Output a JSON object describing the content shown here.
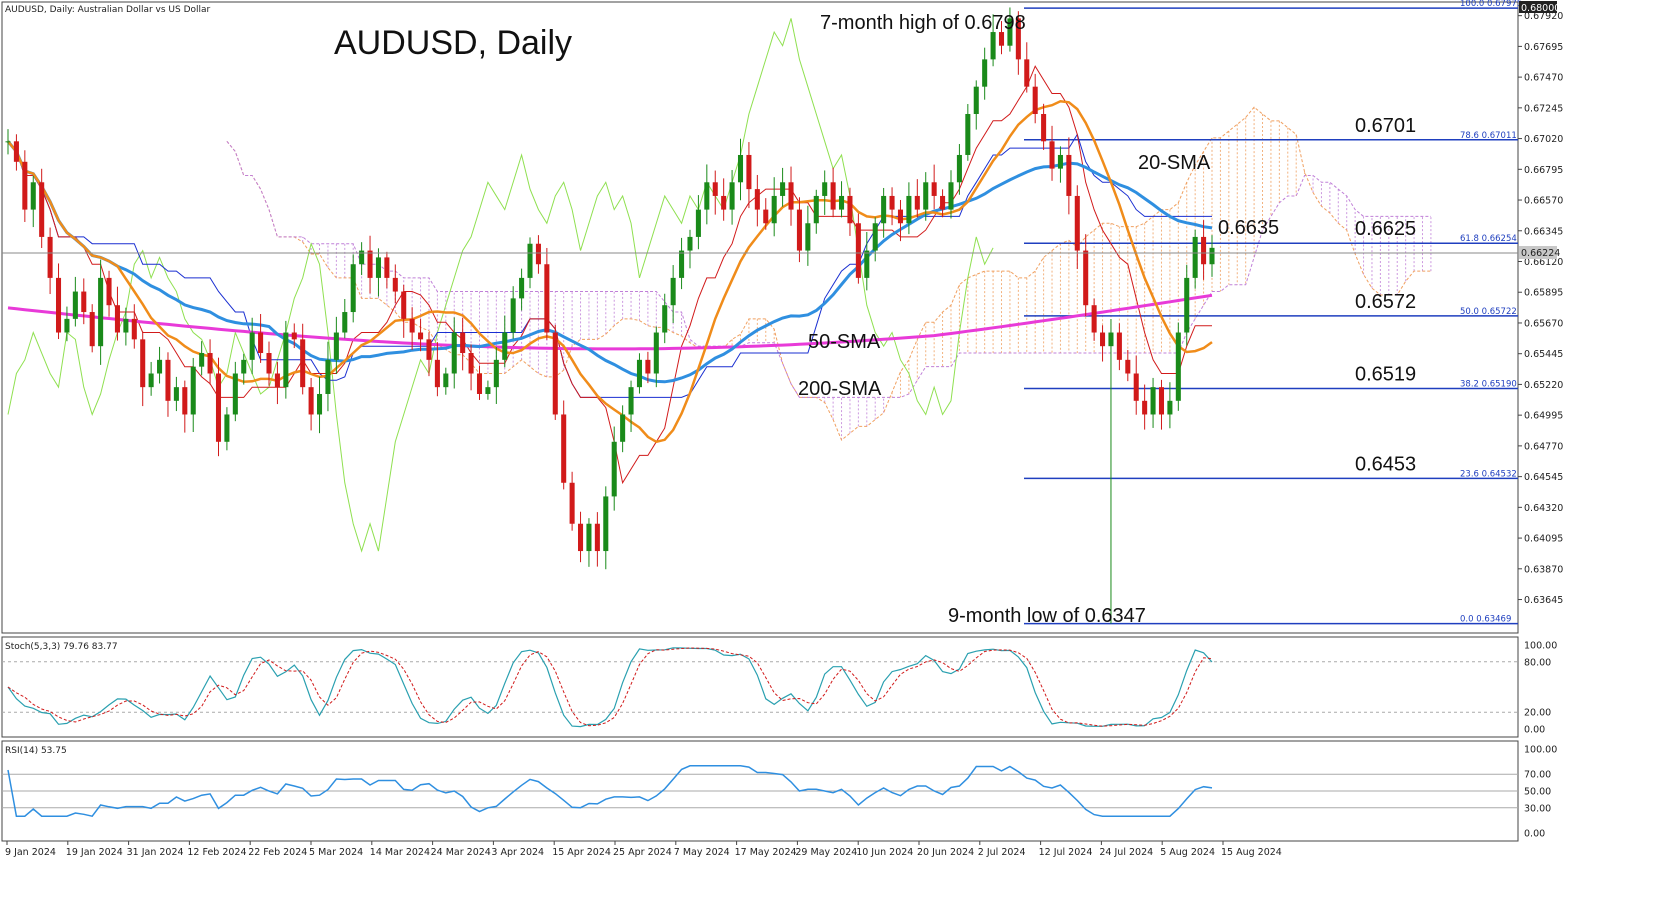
{
  "header": {
    "symbol_line": "AUDUSD, Daily:  Australian Dollar vs US Dollar",
    "chart_title": "AUDUSD, Daily",
    "current_price": "0.66224"
  },
  "annotations": {
    "high": "7-month high of 0.6798",
    "low": "9-month low of 0.6347",
    "sma20": "20-SMA",
    "sma50": "50-SMA",
    "sma200": "200-SMA",
    "price_0635": "0.6635"
  },
  "fib_levels": [
    {
      "pct": "100.0",
      "value": 0.67975,
      "label": "100.0  0.67975",
      "big": ""
    },
    {
      "pct": "78.6",
      "value": 0.67011,
      "label": "78.6  0.67011",
      "big": "0.6701"
    },
    {
      "pct": "61.8",
      "value": 0.66254,
      "label": "61.8  0.66254",
      "big": "0.6625"
    },
    {
      "pct": "50.0",
      "value": 0.65722,
      "label": "50.0  0.65722",
      "big": "0.6572"
    },
    {
      "pct": "38.2",
      "value": 0.6519,
      "label": "38.2  0.65190",
      "big": "0.6519"
    },
    {
      "pct": "23.6",
      "value": 0.64532,
      "label": "23.6  0.64532",
      "big": "0.6453"
    },
    {
      "pct": "0.0",
      "value": 0.63469,
      "label": "0.0  0.63469",
      "big": ""
    }
  ],
  "price_axis": {
    "ticks": [
      "0.67920",
      "0.67695",
      "0.67470",
      "0.67245",
      "0.67020",
      "0.66795",
      "0.66570",
      "0.66345",
      "0.66120",
      "0.65895",
      "0.65670",
      "0.65445",
      "0.65220",
      "0.64995",
      "0.64770",
      "0.64545",
      "0.64320",
      "0.64095",
      "0.63870",
      "0.63645"
    ],
    "top_label": "0.68000",
    "range": [
      0.634,
      0.6802
    ]
  },
  "date_axis": [
    "9 Jan 2024",
    "19 Jan 2024",
    "31 Jan 2024",
    "12 Feb 2024",
    "22 Feb 2024",
    "5 Mar 2024",
    "14 Mar 2024",
    "24 Mar 2024",
    "3 Apr 2024",
    "15 Apr 2024",
    "25 Apr 2024",
    "7 May 2024",
    "17 May 2024",
    "29 May 2024",
    "10 Jun 2024",
    "20 Jun 2024",
    "2 Jul 2024",
    "12 Jul 2024",
    "24 Jul 2024",
    "5 Aug 2024",
    "15 Aug 2024"
  ],
  "stoch": {
    "label": "Stoch(5,3,3) 79.76 83.77",
    "ticks": [
      "100.00",
      "80.00",
      "20.00",
      "0.00"
    ]
  },
  "rsi": {
    "label": "RSI(14) 53.75",
    "ticks": [
      "100.00",
      "70.00",
      "50.00",
      "30.00",
      "0.00"
    ]
  },
  "chart_data": {
    "type": "candlestick",
    "title": "AUDUSD, Daily",
    "ylim": [
      0.634,
      0.6802
    ],
    "closes": [
      0.67,
      0.6685,
      0.665,
      0.667,
      0.663,
      0.66,
      0.656,
      0.657,
      0.659,
      0.6575,
      0.655,
      0.66,
      0.658,
      0.656,
      0.657,
      0.6555,
      0.652,
      0.653,
      0.654,
      0.651,
      0.652,
      0.65,
      0.6535,
      0.6545,
      0.653,
      0.648,
      0.65,
      0.653,
      0.654,
      0.656,
      0.6545,
      0.653,
      0.652,
      0.656,
      0.6555,
      0.652,
      0.65,
      0.6515,
      0.654,
      0.656,
      0.6575,
      0.661,
      0.662,
      0.66,
      0.6615,
      0.66,
      0.659,
      0.657,
      0.656,
      0.6555,
      0.654,
      0.652,
      0.653,
      0.656,
      0.6545,
      0.653,
      0.6515,
      0.652,
      0.654,
      0.656,
      0.6585,
      0.66,
      0.6625,
      0.661,
      0.656,
      0.65,
      0.645,
      0.642,
      0.64,
      0.642,
      0.64,
      0.644,
      0.648,
      0.65,
      0.652,
      0.654,
      0.653,
      0.656,
      0.658,
      0.66,
      0.662,
      0.663,
      0.665,
      0.667,
      0.666,
      0.665,
      0.667,
      0.669,
      0.6665,
      0.665,
      0.664,
      0.666,
      0.667,
      0.665,
      0.662,
      0.664,
      0.666,
      0.667,
      0.665,
      0.666,
      0.664,
      0.66,
      0.662,
      0.664,
      0.666,
      0.665,
      0.664,
      0.666,
      0.665,
      0.667,
      0.666,
      0.665,
      0.667,
      0.669,
      0.672,
      0.674,
      0.676,
      0.678,
      0.677,
      0.679,
      0.676,
      0.674,
      0.672,
      0.67,
      0.668,
      0.669,
      0.666,
      0.662,
      0.658,
      0.656,
      0.655,
      0.656,
      0.654,
      0.653,
      0.651,
      0.65,
      0.652,
      0.65,
      0.651,
      0.656,
      0.66,
      0.663,
      0.661,
      0.6622
    ],
    "sma20_label": "20-SMA",
    "sma50_label": "50-SMA",
    "sma200_label": "200-SMA",
    "high": 0.6798,
    "low": 0.6347,
    "stoch_last": [
      79.76,
      83.77
    ],
    "rsi_last": 53.75
  },
  "colors": {
    "up": "#1a8a1a",
    "down": "#d11a1a",
    "sma20": "#f08c1a",
    "sma50": "#2f8fe0",
    "sma200": "#e83ad8",
    "fib": "#1f3fbf",
    "tenkan": "#d11a1a",
    "kijun": "#1a2fd1",
    "chikou": "#8fe050",
    "cloud_bull": "#f0a060",
    "cloud_bear": "#c080d8",
    "stoch_main": "#2aa0b0",
    "stoch_signal": "#d11a1a",
    "rsi": "#2f8fe0"
  }
}
